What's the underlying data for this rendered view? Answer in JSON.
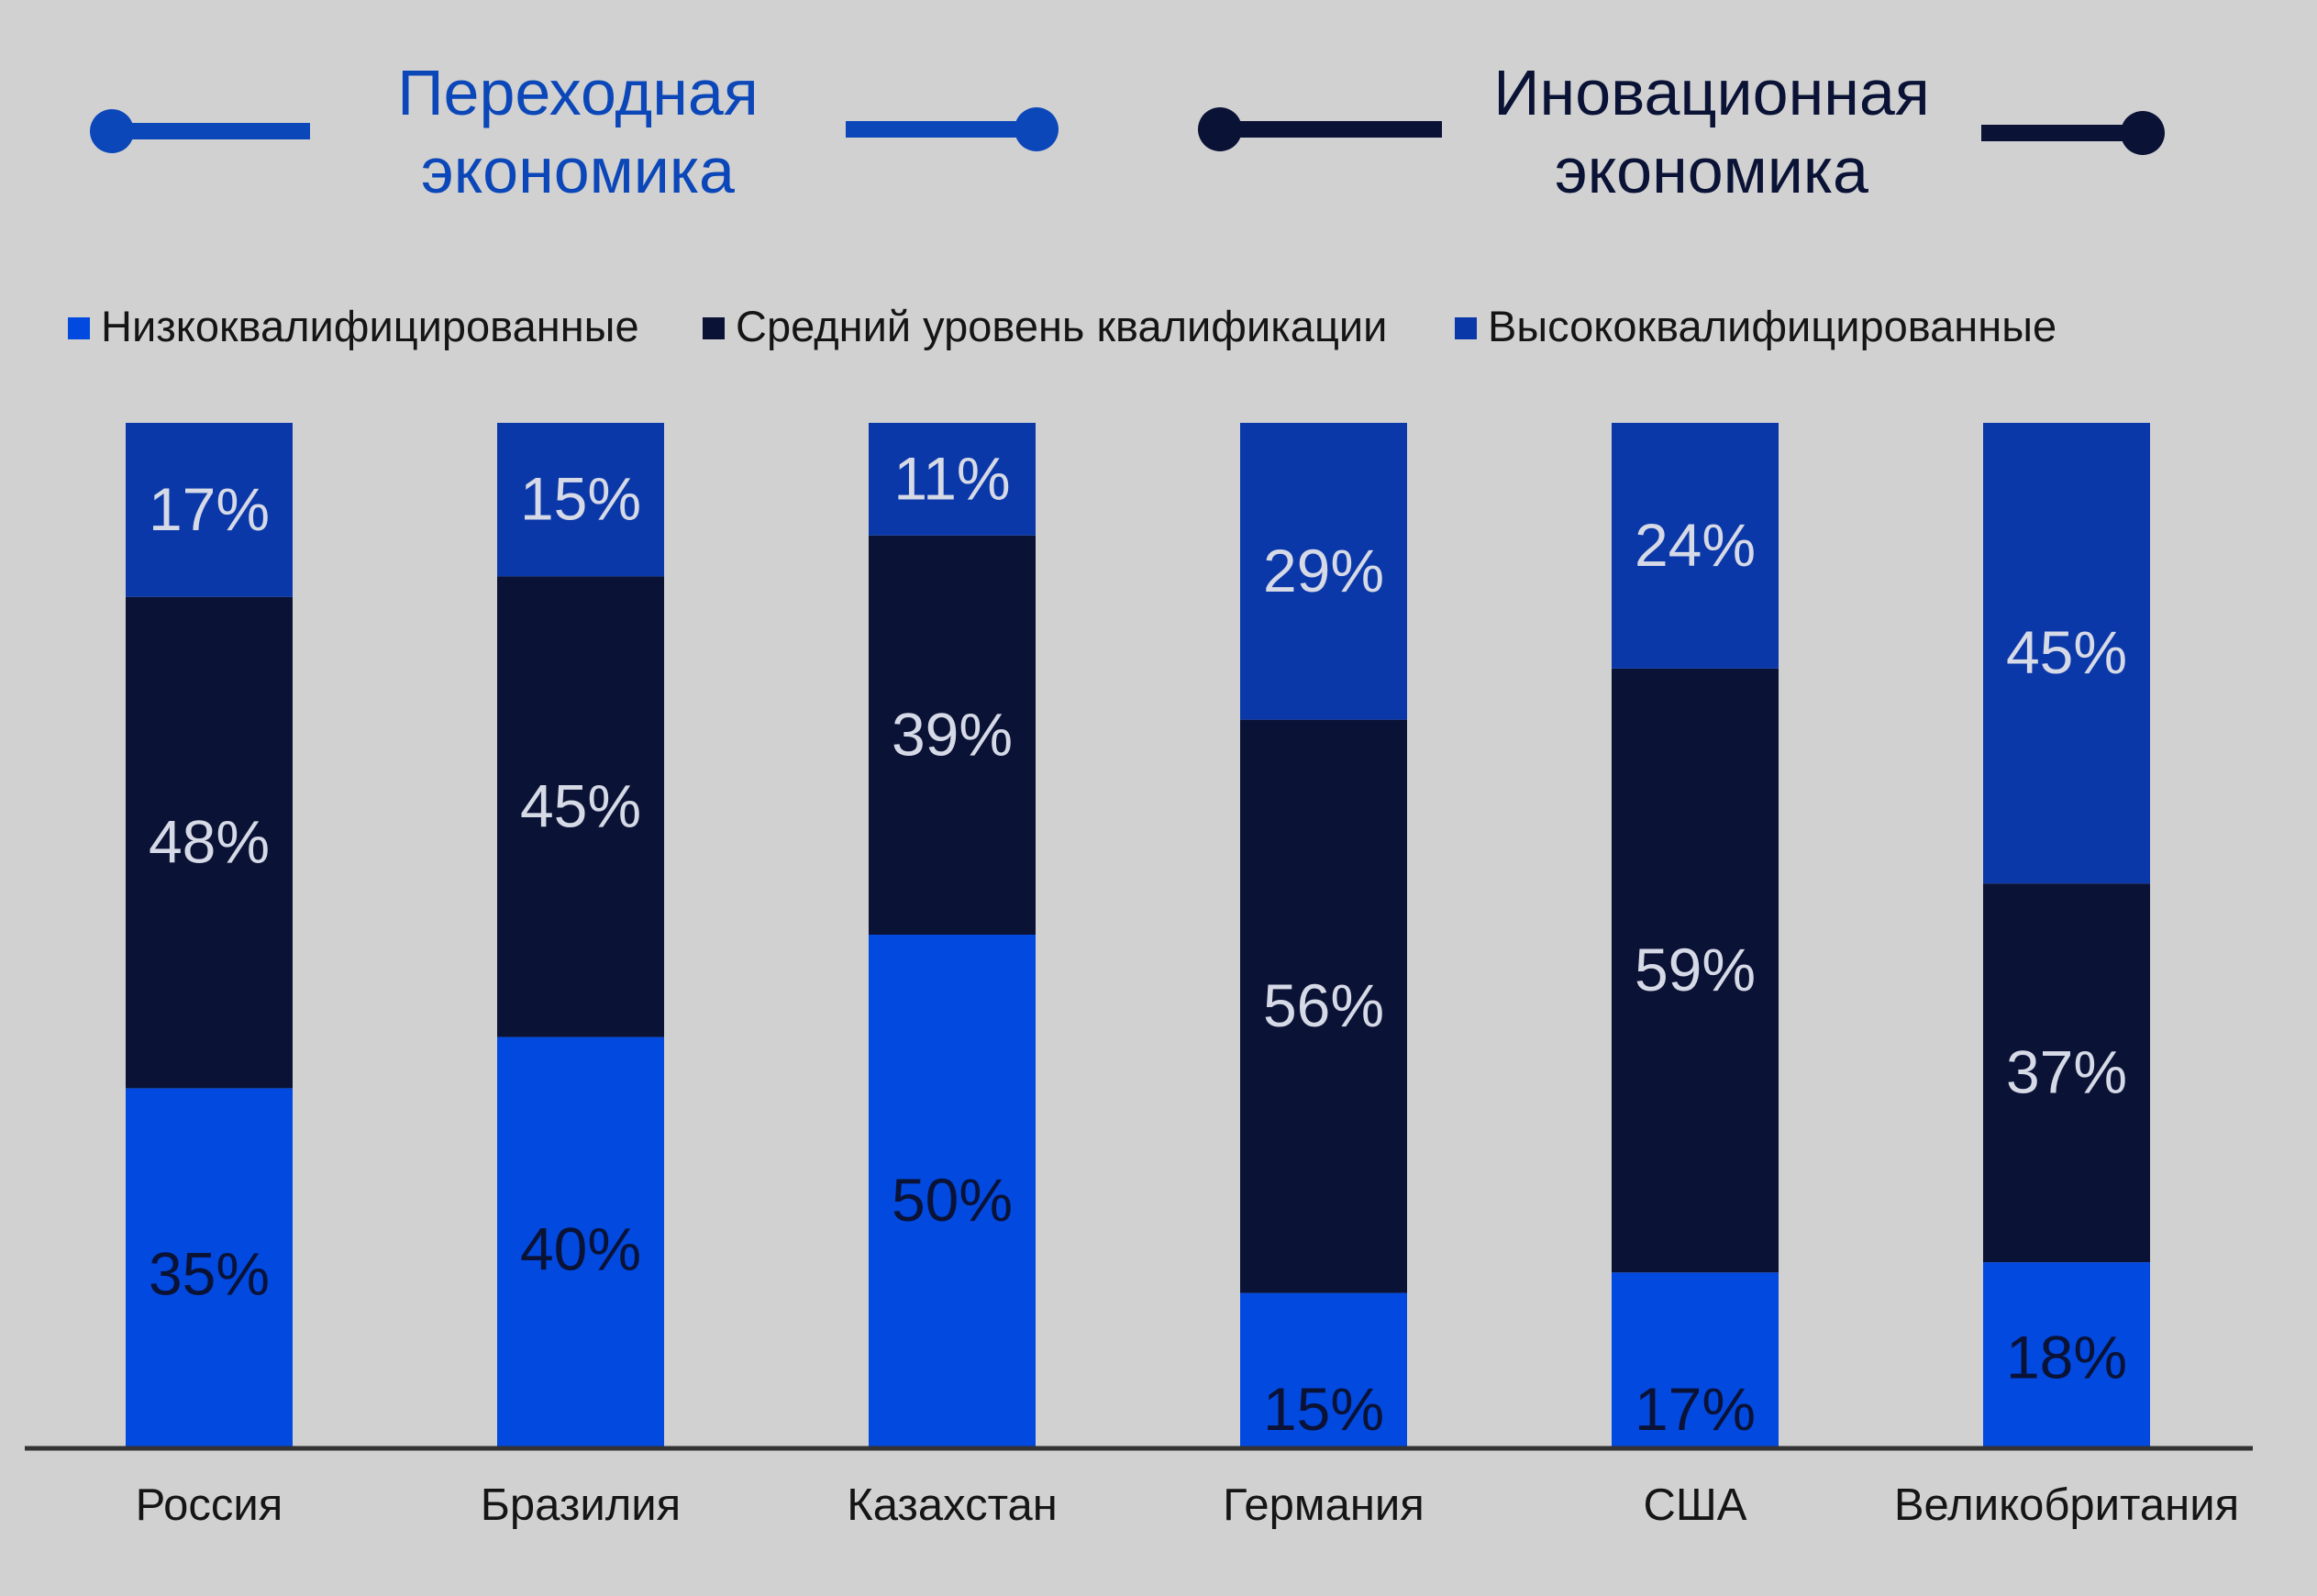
{
  "groups": [
    {
      "title_line1": "Переходная",
      "title_line2": "экономика",
      "color": "#0b47b8"
    },
    {
      "title_line1": "Иновационная",
      "title_line2": "экономика",
      "color": "#0a1236"
    }
  ],
  "colors": {
    "background": "#d1d1d1",
    "low": "#0249e0",
    "mid": "#0a1236",
    "high": "#0b38a8",
    "label_light": "#d6d9e6",
    "label_dark": "#0a1236",
    "axis": "#333333"
  },
  "chart_data": {
    "type": "bar",
    "stacked": true,
    "title": "",
    "xlabel": "",
    "ylabel": "",
    "ylim": [
      0,
      100
    ],
    "grid": false,
    "legend_position": "top-left",
    "categories": [
      "Россия",
      "Бразилия",
      "Казахстан",
      "Германия",
      "США",
      "Великобритания"
    ],
    "series": [
      {
        "name": "Низкоквалифицированные",
        "values": [
          35,
          40,
          50,
          15,
          17,
          18
        ],
        "labels": [
          "35%",
          "40%",
          "50%",
          "15%",
          "17%",
          "18%"
        ]
      },
      {
        "name": "Средний уровень квалификации",
        "values": [
          48,
          45,
          39,
          56,
          59,
          37
        ],
        "labels": [
          "48%",
          "45%",
          "39%",
          "56%",
          "59%",
          "37%"
        ]
      },
      {
        "name": "Высококвалифицированные",
        "values": [
          17,
          15,
          11,
          29,
          24,
          45
        ],
        "labels": [
          "17%",
          "15%",
          "11%",
          "29%",
          "24%",
          "45%"
        ]
      }
    ]
  }
}
